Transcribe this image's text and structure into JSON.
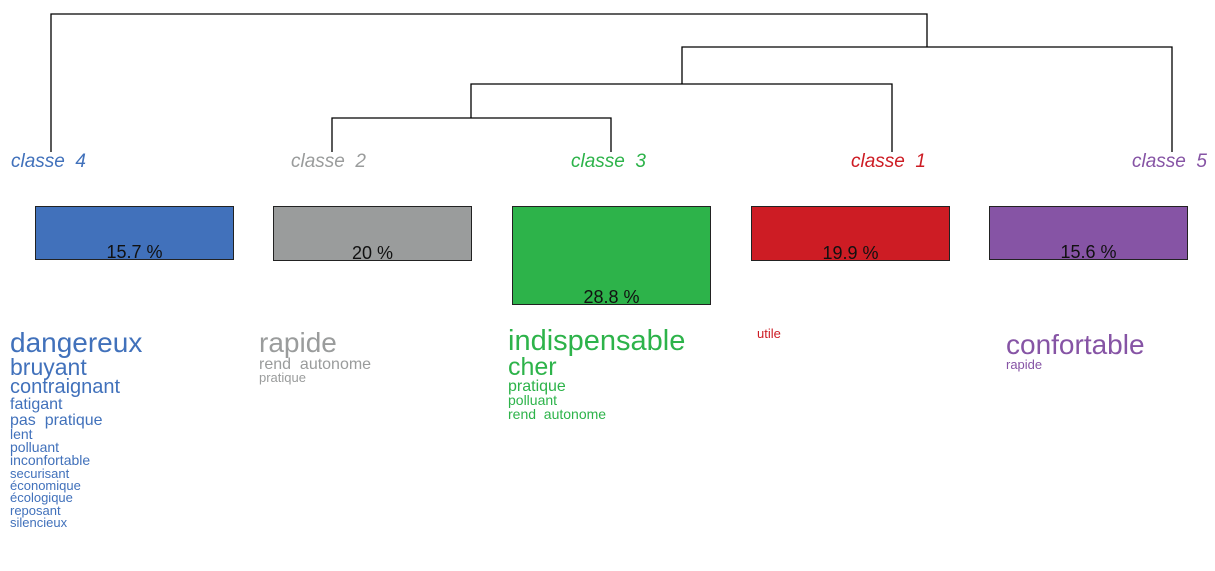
{
  "classes": [
    {
      "label": "classe  4",
      "color": "#4171bb",
      "percent": "15.7 %",
      "share": 15.7,
      "words": [
        {
          "text": "dangereux",
          "size": 28
        },
        {
          "text": "bruyant",
          "size": 23
        },
        {
          "text": "contraignant",
          "size": 20
        },
        {
          "text": "fatigant",
          "size": 16
        },
        {
          "text": "pas  pratique",
          "size": 16
        },
        {
          "text": "lent",
          "size": 14
        },
        {
          "text": "polluant",
          "size": 14
        },
        {
          "text": "inconfortable",
          "size": 14
        },
        {
          "text": "securisant",
          "size": 13
        },
        {
          "text": "économique",
          "size": 13
        },
        {
          "text": "écologique",
          "size": 13
        },
        {
          "text": "reposant",
          "size": 13
        },
        {
          "text": "silencieux",
          "size": 13
        }
      ]
    },
    {
      "label": "classe  2",
      "color": "#9a9c9c",
      "percent": "20 %",
      "share": 20,
      "words": [
        {
          "text": "rapide",
          "size": 28
        },
        {
          "text": "rend  autonome",
          "size": 16
        },
        {
          "text": "pratique",
          "size": 13
        }
      ]
    },
    {
      "label": "classe  3",
      "color": "#2db34a",
      "percent": "28.8 %",
      "share": 28.8,
      "words": [
        {
          "text": "indispensable",
          "size": 29
        },
        {
          "text": "cher",
          "size": 25
        },
        {
          "text": "pratique",
          "size": 16
        },
        {
          "text": "polluant",
          "size": 14
        },
        {
          "text": "rend  autonome",
          "size": 14
        }
      ]
    },
    {
      "label": "classe  1",
      "color": "#cd1c24",
      "percent": "19.9 %",
      "share": 19.9,
      "words": [
        {
          "text": "utile",
          "size": 13
        }
      ]
    },
    {
      "label": "classe  5",
      "color": "#8654a5",
      "percent": "15.6 %",
      "share": 15.6,
      "words": [
        {
          "text": "confortable",
          "size": 28
        },
        {
          "text": "rapide",
          "size": 13
        }
      ]
    }
  ]
}
